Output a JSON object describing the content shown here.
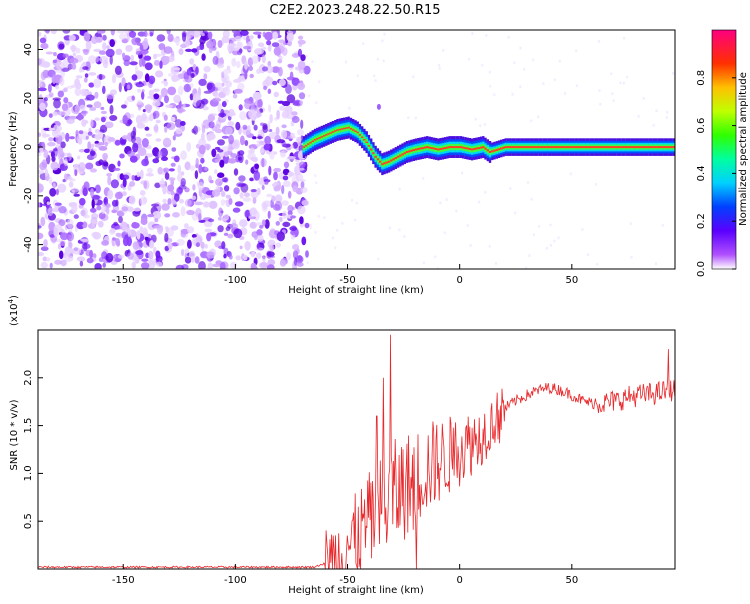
{
  "title": "C2E2.2023.248.22.50.R15",
  "chart_data": [
    {
      "type": "heatmap",
      "xlabel": "Height of straight line (km)",
      "ylabel": "Frequency (Hz)",
      "xlim": [
        -188,
        96
      ],
      "ylim": [
        -50,
        48
      ],
      "xticks": [
        -150,
        -100,
        -50,
        0,
        50
      ],
      "yticks": [
        -40,
        -20,
        0,
        20,
        40
      ],
      "grid": false,
      "ridge": {
        "x": [
          -70,
          -65,
          -60,
          -55,
          -50,
          -46,
          -42,
          -38,
          -35,
          -32,
          -28,
          -24,
          -20,
          -15,
          -10,
          -5,
          0,
          5,
          10,
          13,
          20,
          40,
          60,
          80,
          96
        ],
        "y": [
          0,
          3,
          5,
          7,
          8,
          6,
          2,
          -4,
          -7,
          -6,
          -4,
          -2,
          -1,
          0,
          -1,
          0,
          0,
          -1,
          0,
          -2,
          0,
          0,
          0,
          0,
          0
        ]
      },
      "colorbar": {
        "label": "Normalized spectral amplitude",
        "range": [
          0.0,
          1.0
        ],
        "ticks": [
          "0.0",
          "0.2",
          "0.4",
          "0.6",
          "0.8"
        ]
      }
    },
    {
      "type": "line",
      "xlabel": "Height of straight line (km)",
      "ylabel": "SNR (10 * v/v)",
      "yscale_label": "(x10",
      "yscale_exp": "4",
      "yscale_close": ")",
      "xlim": [
        -188,
        96
      ],
      "ylim": [
        0.0,
        2.5
      ],
      "xticks": [
        -150,
        -100,
        -50,
        0,
        50
      ],
      "yticks": [
        "0.5",
        "1.0",
        "1.5",
        "2.0"
      ],
      "grid": false,
      "series": [
        {
          "color": "#e8282b",
          "trend_x": [
            -188,
            -65,
            -60,
            -55,
            -50,
            -45,
            -40,
            -35,
            -30,
            -25,
            -20,
            -15,
            -10,
            -5,
            0,
            5,
            10,
            15,
            20,
            25,
            30,
            35,
            40,
            45,
            50,
            55,
            60,
            65,
            70,
            75,
            80,
            85,
            90,
            96
          ],
          "trend_y": [
            0.02,
            0.02,
            0.06,
            0.12,
            0.22,
            0.35,
            0.5,
            0.62,
            0.75,
            0.85,
            0.95,
            1.05,
            1.12,
            1.18,
            1.25,
            1.32,
            1.4,
            1.55,
            1.68,
            1.76,
            1.82,
            1.87,
            1.9,
            1.87,
            1.82,
            1.76,
            1.73,
            1.74,
            1.76,
            1.8,
            1.82,
            1.83,
            1.85,
            1.88
          ],
          "spikes": [
            {
              "x": -31,
              "y": 2.45
            },
            {
              "x": -34,
              "y": 2.0
            },
            {
              "x": -37,
              "y": 1.6
            },
            {
              "x": -50,
              "y": 0.35
            },
            {
              "x": 93,
              "y": 2.3
            }
          ]
        }
      ]
    }
  ]
}
